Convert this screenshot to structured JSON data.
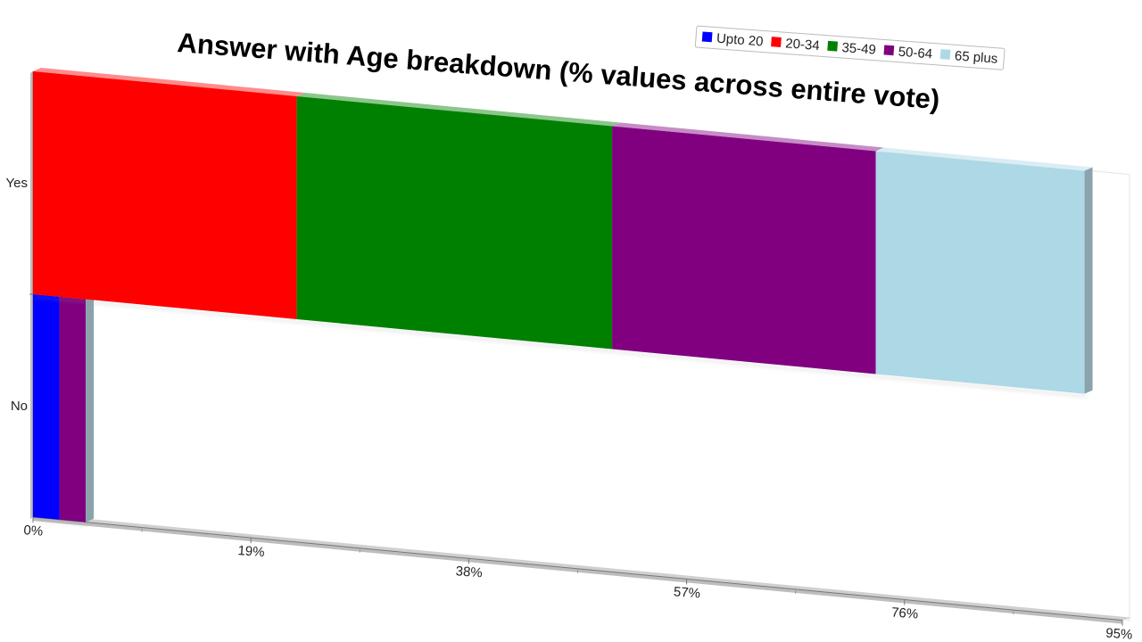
{
  "chart_data": {
    "type": "bar",
    "orientation": "horizontal",
    "stacked": true,
    "three_d": true,
    "title": "Answer with Age breakdown (% values across entire vote)",
    "categories": [
      "Yes",
      "No"
    ],
    "series": [
      {
        "name": "Upto 20",
        "color": "#0000ff",
        "values": [
          0,
          2.3
        ]
      },
      {
        "name": "20-34",
        "color": "#ff0000",
        "values": [
          23,
          0
        ]
      },
      {
        "name": "35-49",
        "color": "#008000",
        "values": [
          27.5,
          0
        ]
      },
      {
        "name": "50-64",
        "color": "#800080",
        "values": [
          23,
          2.3
        ]
      },
      {
        "name": "65 plus",
        "color": "#add8e6",
        "values": [
          18.2,
          0
        ]
      }
    ],
    "xlim": [
      0,
      95
    ],
    "x_ticks": [
      "0%",
      "19%",
      "38%",
      "57%",
      "76%",
      "95%"
    ],
    "legend_position": "top-right"
  }
}
